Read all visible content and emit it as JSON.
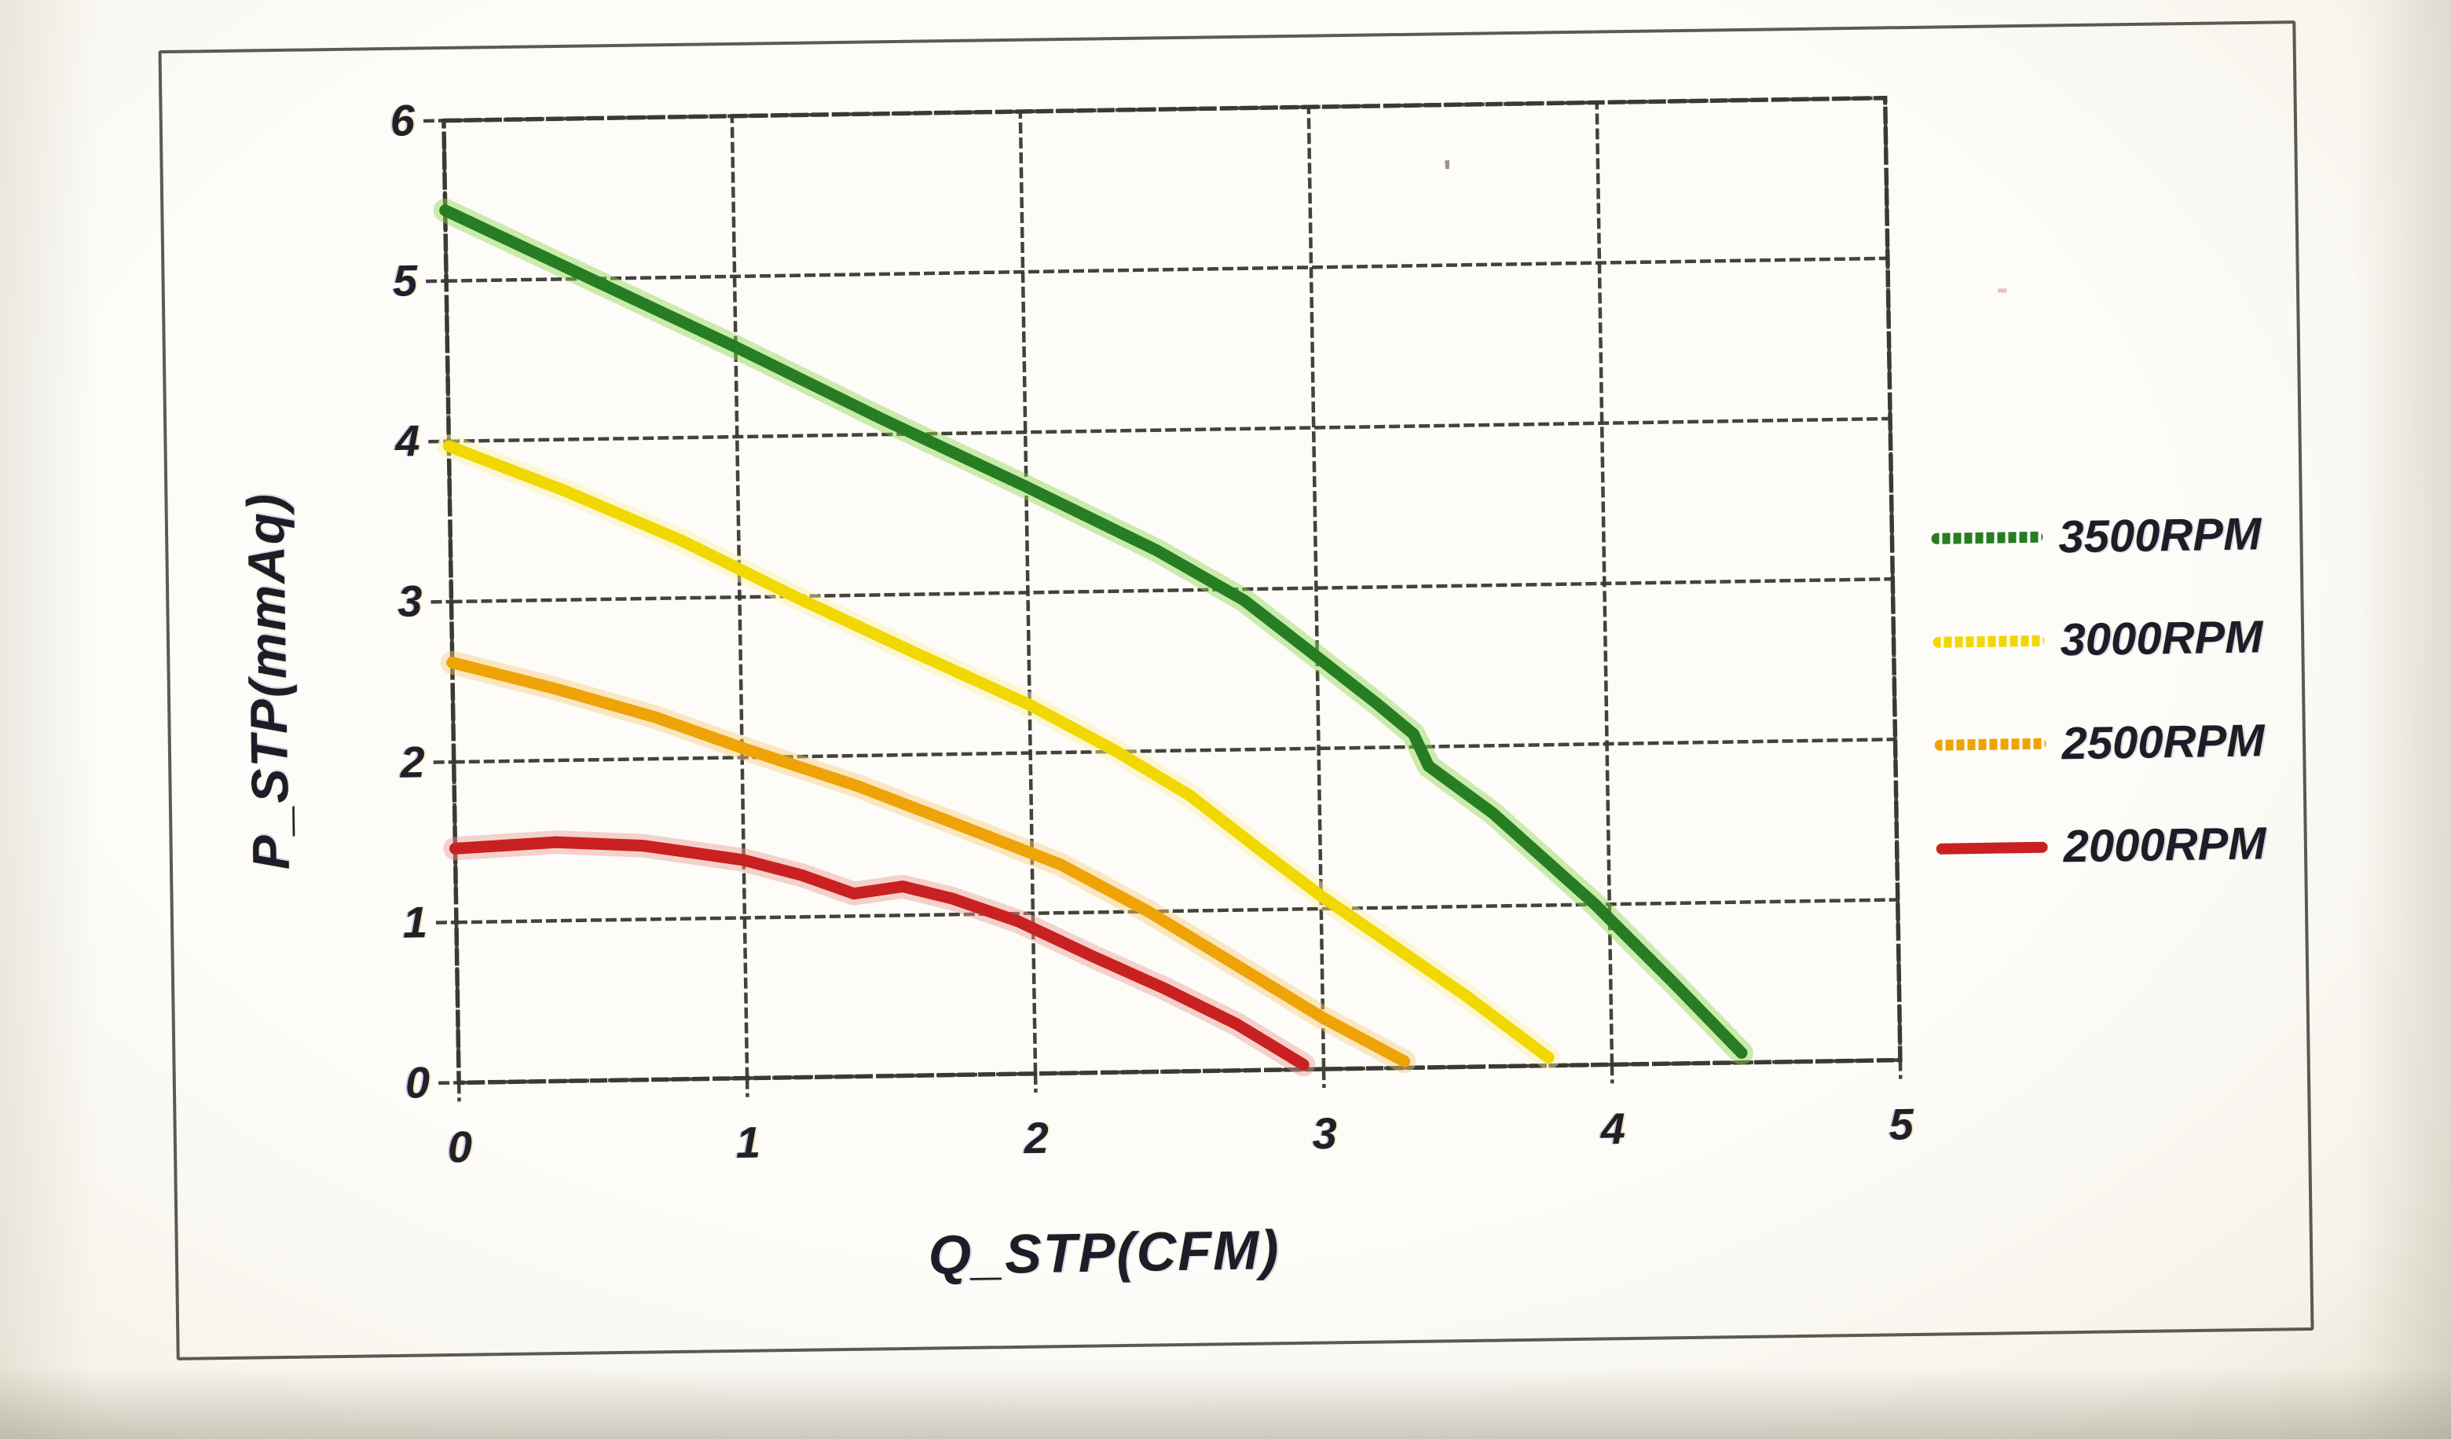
{
  "page": {
    "description_of_visible_content": "Scanned fan performance curve chart inside a thin rectangular page border"
  },
  "colors": {
    "paper": "#fdfcf9",
    "frame_border": "#3e3e34",
    "grid": "#3a3a30",
    "text": "#1d1d28",
    "series_green": "#267d22",
    "series_yellow": "#f0d800",
    "series_orange": "#eea307",
    "series_red": "#c92121"
  },
  "artifacts": [
    {
      "glyph": "'"
    },
    {
      "glyph": "-"
    }
  ],
  "chart_data": {
    "type": "line",
    "title": "",
    "xlabel": "Q_STP(CFM)",
    "ylabel": "P_STP(mmAq)",
    "xlim": [
      0,
      5
    ],
    "ylim": [
      0,
      6
    ],
    "xticks": [
      0,
      1,
      2,
      3,
      4,
      5
    ],
    "yticks": [
      0,
      1,
      2,
      3,
      4,
      5,
      6
    ],
    "grid": true,
    "legend_position": "right-outside",
    "series": [
      {
        "name": "3500RPM",
        "color": "#267d22",
        "glow": "#8fd84f",
        "swatch": "dotted",
        "points": [
          [
            0,
            5.44
          ],
          [
            0.5,
            5.0
          ],
          [
            1.0,
            4.56
          ],
          [
            1.5,
            4.1
          ],
          [
            2.0,
            3.66
          ],
          [
            2.45,
            3.25
          ],
          [
            2.75,
            2.93
          ],
          [
            3.0,
            2.57
          ],
          [
            3.2,
            2.28
          ],
          [
            3.33,
            2.08
          ],
          [
            3.38,
            1.88
          ],
          [
            3.6,
            1.58
          ],
          [
            3.95,
            1.0
          ],
          [
            4.22,
            0.5
          ],
          [
            4.45,
            0.06
          ]
        ]
      },
      {
        "name": "3000RPM",
        "color": "#f0d800",
        "glow": "#faf1a2",
        "swatch": "dotted",
        "points": [
          [
            0,
            3.97
          ],
          [
            0.4,
            3.68
          ],
          [
            0.8,
            3.36
          ],
          [
            1.2,
            2.99
          ],
          [
            1.6,
            2.64
          ],
          [
            2.0,
            2.3
          ],
          [
            2.3,
            2.0
          ],
          [
            2.55,
            1.72
          ],
          [
            2.8,
            1.36
          ],
          [
            3.0,
            1.08
          ],
          [
            3.25,
            0.76
          ],
          [
            3.5,
            0.44
          ],
          [
            3.78,
            0.05
          ]
        ]
      },
      {
        "name": "2500RPM",
        "color": "#eea307",
        "glow": "#f6cf79",
        "swatch": "dotted",
        "points": [
          [
            0,
            2.62
          ],
          [
            0.35,
            2.45
          ],
          [
            0.7,
            2.26
          ],
          [
            1.0,
            2.06
          ],
          [
            1.4,
            1.81
          ],
          [
            1.8,
            1.52
          ],
          [
            2.1,
            1.3
          ],
          [
            2.4,
            1.0
          ],
          [
            2.7,
            0.66
          ],
          [
            3.0,
            0.32
          ],
          [
            3.28,
            0.04
          ]
        ]
      },
      {
        "name": "2000RPM",
        "color": "#c92121",
        "glow": "#eb9d92",
        "swatch": "solid",
        "points": [
          [
            0,
            1.46
          ],
          [
            0.35,
            1.49
          ],
          [
            0.65,
            1.46
          ],
          [
            1.0,
            1.36
          ],
          [
            1.2,
            1.26
          ],
          [
            1.38,
            1.14
          ],
          [
            1.55,
            1.18
          ],
          [
            1.72,
            1.1
          ],
          [
            1.95,
            0.95
          ],
          [
            2.2,
            0.73
          ],
          [
            2.45,
            0.52
          ],
          [
            2.7,
            0.29
          ],
          [
            2.93,
            0.03
          ]
        ]
      }
    ]
  }
}
